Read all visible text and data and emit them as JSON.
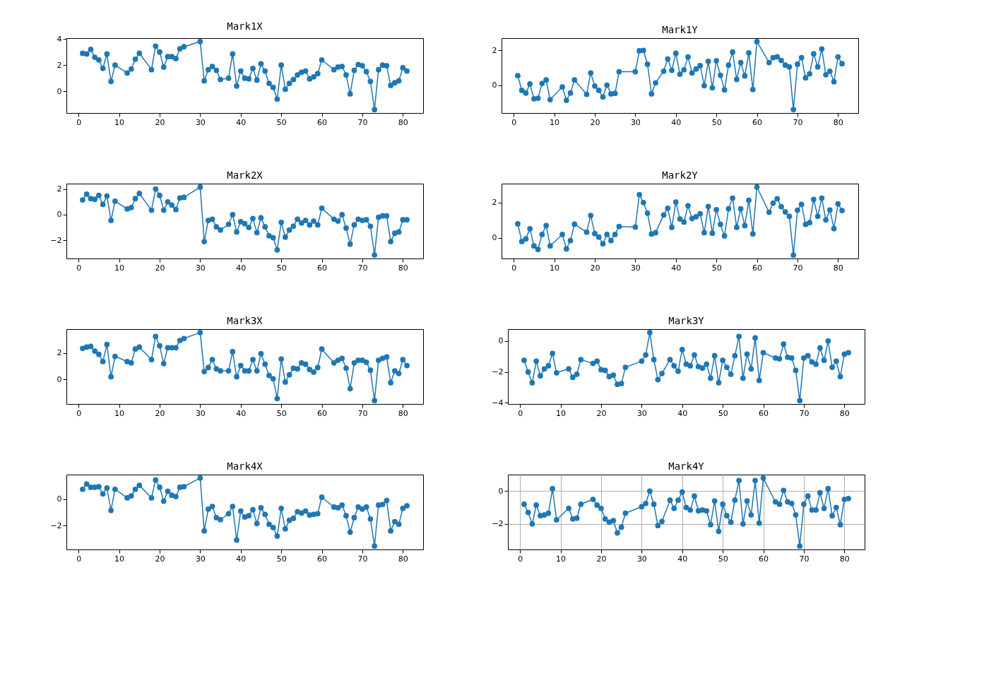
{
  "chart_data": [
    {
      "type": "line",
      "title": "Mark1X",
      "color": "#1f77b4",
      "marker": "circle",
      "line_style": "solid",
      "xlim": [
        -3,
        85
      ],
      "xticks": [
        0,
        10,
        20,
        30,
        40,
        50,
        60,
        70,
        80
      ],
      "ylim": [
        -1.66,
        4.06
      ],
      "yticks": [
        0,
        2,
        4
      ],
      "x": [
        1,
        2,
        3,
        4,
        5,
        6,
        7,
        8,
        9,
        12,
        13,
        14,
        15,
        18,
        19,
        20,
        21,
        22,
        23,
        24,
        25,
        26,
        30,
        31,
        32,
        33,
        34,
        35,
        37,
        38,
        39,
        40,
        41,
        42,
        43,
        44,
        45,
        46,
        47,
        48,
        49,
        50,
        51,
        52,
        53,
        54,
        55,
        56,
        57,
        58,
        59,
        60,
        63,
        64,
        65,
        66,
        67,
        68,
        69,
        70,
        71,
        72,
        73,
        74,
        75,
        76,
        77,
        78,
        79,
        80,
        81
      ],
      "values": [
        2.9,
        2.85,
        3.2,
        2.6,
        2.4,
        1.75,
        2.85,
        0.75,
        2.0,
        1.4,
        1.7,
        2.45,
        2.9,
        1.65,
        3.45,
        3.0,
        1.85,
        2.65,
        2.65,
        2.5,
        3.25,
        3.4,
        3.8,
        0.8,
        1.65,
        1.9,
        1.6,
        0.9,
        1.0,
        2.85,
        0.4,
        1.55,
        1.0,
        0.95,
        1.75,
        0.85,
        2.1,
        1.55,
        0.6,
        0.3,
        -0.6,
        2.0,
        0.15,
        0.6,
        0.9,
        1.25,
        1.45,
        1.55,
        0.95,
        1.1,
        1.35,
        2.4,
        1.65,
        1.85,
        1.9,
        1.25,
        -0.2,
        1.6,
        2.05,
        1.95,
        1.5,
        0.75,
        -1.4,
        1.65,
        2.0,
        1.95,
        0.45,
        0.65,
        0.8,
        1.8,
        1.55
      ]
    },
    {
      "type": "line",
      "title": "Mark1Y",
      "color": "#1f77b4",
      "marker": "circle",
      "line_style": "solid",
      "xlim": [
        -3,
        85
      ],
      "xticks": [
        0,
        10,
        20,
        30,
        40,
        50,
        60,
        70,
        80
      ],
      "ylim": [
        -1.6,
        2.7
      ],
      "yticks": [
        0,
        2
      ],
      "x": [
        1,
        2,
        3,
        4,
        5,
        6,
        7,
        8,
        9,
        12,
        13,
        14,
        15,
        18,
        19,
        20,
        21,
        22,
        23,
        24,
        25,
        26,
        30,
        31,
        32,
        33,
        34,
        35,
        37,
        38,
        39,
        40,
        41,
        42,
        43,
        44,
        45,
        46,
        47,
        48,
        49,
        50,
        51,
        52,
        53,
        54,
        55,
        56,
        57,
        58,
        59,
        60,
        63,
        64,
        65,
        66,
        67,
        68,
        69,
        70,
        71,
        72,
        73,
        74,
        75,
        76,
        77,
        78,
        79,
        80,
        81
      ],
      "values": [
        0.55,
        -0.3,
        -0.45,
        0.07,
        -0.78,
        -0.75,
        0.1,
        0.3,
        -0.83,
        -0.1,
        -0.87,
        -0.45,
        0.3,
        -0.53,
        0.7,
        -0.05,
        -0.3,
        -0.68,
        0.0,
        -0.5,
        -0.47,
        0.77,
        0.77,
        1.97,
        2.0,
        1.2,
        -0.5,
        0.13,
        0.8,
        1.5,
        0.85,
        1.83,
        0.63,
        0.88,
        1.62,
        0.7,
        0.93,
        1.12,
        -0.03,
        1.37,
        -0.15,
        1.4,
        0.57,
        -0.27,
        1.15,
        1.9,
        0.33,
        1.3,
        0.53,
        1.85,
        -0.25,
        2.5,
        1.3,
        1.58,
        1.63,
        1.42,
        1.15,
        1.05,
        -1.4,
        1.2,
        1.58,
        0.42,
        0.65,
        1.8,
        1.05,
        2.08,
        0.6,
        0.8,
        0.2,
        1.62,
        1.23
      ]
    },
    {
      "type": "line",
      "title": "Mark2X",
      "color": "#1f77b4",
      "marker": "circle",
      "line_style": "solid",
      "xlim": [
        -3,
        85
      ],
      "xticks": [
        0,
        10,
        20,
        30,
        40,
        50,
        60,
        70,
        80
      ],
      "ylim": [
        -3.42,
        2.42
      ],
      "yticks": [
        -2,
        0,
        2
      ],
      "x": [
        1,
        2,
        3,
        4,
        5,
        6,
        7,
        8,
        9,
        12,
        13,
        14,
        15,
        18,
        19,
        20,
        21,
        22,
        23,
        24,
        25,
        26,
        30,
        31,
        32,
        33,
        34,
        35,
        37,
        38,
        39,
        40,
        41,
        42,
        43,
        44,
        45,
        46,
        47,
        48,
        49,
        50,
        51,
        52,
        53,
        54,
        55,
        56,
        57,
        58,
        59,
        60,
        63,
        64,
        65,
        66,
        67,
        68,
        69,
        70,
        71,
        72,
        73,
        74,
        75,
        76,
        77,
        78,
        79,
        80,
        81
      ],
      "values": [
        1.15,
        1.6,
        1.25,
        1.2,
        1.5,
        0.8,
        1.45,
        -0.45,
        1.05,
        0.45,
        0.55,
        1.25,
        1.65,
        0.35,
        2.0,
        1.5,
        0.35,
        1.0,
        0.75,
        0.4,
        1.3,
        1.35,
        2.15,
        -2.1,
        -0.45,
        -0.35,
        -0.95,
        -1.2,
        -0.75,
        0.0,
        -1.35,
        -0.55,
        -0.7,
        -1.0,
        -0.3,
        -1.4,
        -0.25,
        -0.95,
        -1.65,
        -1.8,
        -2.75,
        -0.6,
        -1.75,
        -1.2,
        -0.9,
        -0.35,
        -0.65,
        -0.45,
        -0.8,
        -0.5,
        -0.8,
        0.5,
        -0.35,
        -0.5,
        0.0,
        -1.05,
        -2.3,
        -0.8,
        -0.35,
        -0.45,
        -0.4,
        -0.9,
        -3.15,
        -0.2,
        -0.1,
        -0.1,
        -2.1,
        -1.45,
        -1.35,
        -0.4,
        -0.4
      ]
    },
    {
      "type": "line",
      "title": "Mark2Y",
      "color": "#1f77b4",
      "marker": "circle",
      "line_style": "solid",
      "xlim": [
        -3,
        85
      ],
      "xticks": [
        0,
        10,
        20,
        30,
        40,
        50,
        60,
        70,
        80
      ],
      "ylim": [
        -1.16,
        3.07
      ],
      "yticks": [
        0,
        2
      ],
      "x": [
        1,
        2,
        3,
        4,
        5,
        6,
        7,
        8,
        9,
        12,
        13,
        14,
        15,
        18,
        19,
        20,
        21,
        22,
        23,
        24,
        25,
        26,
        30,
        31,
        32,
        33,
        34,
        35,
        37,
        38,
        39,
        40,
        41,
        42,
        43,
        44,
        45,
        46,
        47,
        48,
        49,
        50,
        51,
        52,
        53,
        54,
        55,
        56,
        57,
        58,
        59,
        60,
        63,
        64,
        65,
        66,
        67,
        68,
        69,
        70,
        71,
        72,
        73,
        74,
        75,
        76,
        77,
        78,
        79,
        80,
        81
      ],
      "values": [
        0.8,
        -0.2,
        -0.05,
        0.52,
        -0.45,
        -0.65,
        0.2,
        0.7,
        -0.45,
        0.2,
        -0.62,
        -0.15,
        0.78,
        0.33,
        1.27,
        0.25,
        0.05,
        -0.33,
        0.2,
        -0.15,
        0.2,
        0.65,
        0.62,
        2.45,
        2.0,
        1.4,
        0.22,
        0.3,
        1.3,
        1.68,
        0.6,
        2.03,
        1.07,
        0.9,
        1.82,
        1.1,
        1.2,
        1.37,
        0.3,
        1.78,
        0.27,
        1.6,
        0.77,
        0.12,
        1.65,
        2.25,
        0.6,
        1.65,
        0.7,
        2.13,
        0.23,
        2.88,
        1.45,
        1.97,
        2.22,
        1.77,
        1.47,
        1.22,
        -0.97,
        1.57,
        1.9,
        0.77,
        0.87,
        2.18,
        1.22,
        2.25,
        1.02,
        1.58,
        0.53,
        1.93,
        1.55
      ]
    },
    {
      "type": "line",
      "title": "Mark3X",
      "color": "#1f77b4",
      "marker": "circle",
      "line_style": "solid",
      "xlim": [
        -3,
        85
      ],
      "xticks": [
        0,
        10,
        20,
        30,
        40,
        50,
        60,
        70,
        80
      ],
      "ylim": [
        -1.86,
        3.81
      ],
      "yticks": [
        0,
        2
      ],
      "x": [
        1,
        2,
        3,
        4,
        5,
        6,
        7,
        8,
        9,
        12,
        13,
        14,
        15,
        18,
        19,
        20,
        21,
        22,
        23,
        24,
        25,
        26,
        30,
        31,
        32,
        33,
        34,
        35,
        37,
        38,
        39,
        40,
        41,
        42,
        43,
        44,
        45,
        46,
        47,
        48,
        49,
        50,
        51,
        52,
        53,
        54,
        55,
        56,
        57,
        58,
        59,
        60,
        63,
        64,
        65,
        66,
        67,
        68,
        69,
        70,
        71,
        72,
        73,
        74,
        75,
        76,
        77,
        78,
        79,
        80,
        81
      ],
      "values": [
        2.35,
        2.45,
        2.5,
        2.15,
        1.9,
        1.35,
        2.65,
        0.2,
        1.75,
        1.35,
        1.25,
        2.3,
        2.45,
        1.5,
        3.25,
        2.55,
        1.2,
        2.4,
        2.4,
        2.4,
        2.95,
        3.1,
        3.55,
        0.6,
        0.9,
        1.5,
        0.8,
        0.65,
        0.65,
        2.1,
        0.2,
        1.05,
        0.65,
        0.65,
        1.5,
        0.65,
        1.95,
        1.15,
        0.3,
        0.05,
        -1.45,
        1.55,
        -0.2,
        0.35,
        0.85,
        0.8,
        1.25,
        1.15,
        0.75,
        0.55,
        0.9,
        2.3,
        1.25,
        1.45,
        1.6,
        0.85,
        -0.7,
        1.25,
        1.45,
        1.45,
        1.3,
        0.7,
        -1.6,
        1.45,
        1.6,
        1.7,
        -0.25,
        0.65,
        0.45,
        1.5,
        1.05
      ]
    },
    {
      "type": "line",
      "title": "Mark3Y",
      "color": "#1f77b4",
      "marker": "circle",
      "line_style": "solid",
      "xlim": [
        -3,
        85
      ],
      "xticks": [
        0,
        10,
        20,
        30,
        40,
        50,
        60,
        70,
        80
      ],
      "ylim": [
        -4.07,
        0.77
      ],
      "yticks": [
        -4,
        -2,
        0
      ],
      "x": [
        1,
        2,
        3,
        4,
        5,
        6,
        7,
        8,
        9,
        12,
        13,
        14,
        15,
        18,
        19,
        20,
        21,
        22,
        23,
        24,
        25,
        26,
        30,
        31,
        32,
        33,
        34,
        35,
        37,
        38,
        39,
        40,
        41,
        42,
        43,
        44,
        45,
        46,
        47,
        48,
        49,
        50,
        51,
        52,
        53,
        54,
        55,
        56,
        57,
        58,
        59,
        60,
        63,
        64,
        65,
        66,
        67,
        68,
        69,
        70,
        71,
        72,
        73,
        74,
        75,
        76,
        77,
        78,
        79,
        80,
        81
      ],
      "values": [
        -1.25,
        -2.0,
        -2.7,
        -1.3,
        -2.25,
        -1.8,
        -1.6,
        -0.8,
        -2.05,
        -1.8,
        -2.35,
        -2.15,
        -1.2,
        -1.45,
        -1.3,
        -1.85,
        -1.9,
        -2.3,
        -2.2,
        -2.8,
        -2.75,
        -1.7,
        -1.3,
        -0.9,
        0.55,
        -1.2,
        -2.5,
        -2.1,
        -1.2,
        -1.6,
        -1.95,
        -0.55,
        -1.5,
        -1.6,
        -0.9,
        -1.65,
        -1.75,
        -1.5,
        -2.4,
        -0.95,
        -2.7,
        -1.25,
        -1.7,
        -2.15,
        -0.95,
        0.3,
        -2.4,
        -0.85,
        -1.8,
        0.2,
        -2.55,
        -0.75,
        -1.1,
        -1.15,
        -0.2,
        -1.05,
        -1.1,
        -1.9,
        -3.85,
        -1.1,
        -0.95,
        -1.35,
        -1.5,
        -0.45,
        -1.25,
        0.0,
        -1.7,
        -1.3,
        -2.3,
        -0.85,
        -0.75
      ]
    },
    {
      "type": "line",
      "title": "Mark4X",
      "color": "#1f77b4",
      "marker": "circle",
      "line_style": "solid",
      "xlim": [
        -3,
        85
      ],
      "xticks": [
        0,
        10,
        20,
        30,
        40,
        50,
        60,
        70,
        80
      ],
      "ylim": [
        -3.81,
        1.86
      ],
      "yticks": [
        -2,
        0
      ],
      "x": [
        1,
        2,
        3,
        4,
        5,
        6,
        7,
        8,
        9,
        12,
        13,
        14,
        15,
        18,
        19,
        20,
        21,
        22,
        23,
        24,
        25,
        26,
        30,
        31,
        32,
        33,
        34,
        35,
        37,
        38,
        39,
        40,
        41,
        42,
        43,
        44,
        45,
        46,
        47,
        48,
        49,
        50,
        51,
        52,
        53,
        54,
        55,
        56,
        57,
        58,
        59,
        60,
        63,
        64,
        65,
        66,
        67,
        68,
        69,
        70,
        71,
        72,
        73,
        74,
        75,
        76,
        77,
        78,
        79,
        80,
        81
      ],
      "values": [
        0.75,
        1.15,
        0.9,
        0.9,
        0.95,
        0.4,
        0.85,
        -0.85,
        0.75,
        0.1,
        0.25,
        0.75,
        1.05,
        0.1,
        1.45,
        0.9,
        -0.15,
        0.6,
        0.3,
        0.2,
        0.9,
        0.95,
        1.6,
        -2.4,
        -0.75,
        -0.55,
        -1.4,
        -1.55,
        -1.1,
        -0.55,
        -3.1,
        -0.9,
        -1.35,
        -1.25,
        -0.8,
        -1.85,
        -0.65,
        -1.15,
        -1.9,
        -2.15,
        -2.8,
        -0.7,
        -2.25,
        -1.6,
        -1.45,
        -0.95,
        -1.05,
        -0.9,
        -1.2,
        -1.15,
        -1.1,
        0.15,
        -0.6,
        -0.65,
        -0.45,
        -1.25,
        -2.5,
        -1.4,
        -0.6,
        -0.75,
        -0.6,
        -1.5,
        -3.55,
        -0.45,
        -0.4,
        -0.1,
        -2.4,
        -1.7,
        -1.9,
        -0.7,
        -0.5
      ]
    },
    {
      "type": "line",
      "title": "Mark4Y",
      "color": "#1f77b4",
      "marker": "circle",
      "line_style": "solid",
      "grid": true,
      "xlim": [
        -3,
        85
      ],
      "xticks": [
        0,
        10,
        20,
        30,
        40,
        50,
        60,
        70,
        80
      ],
      "ylim": [
        -3.56,
        1.01
      ],
      "yticks": [
        -2,
        0
      ],
      "x": [
        1,
        2,
        3,
        4,
        5,
        6,
        7,
        8,
        9,
        12,
        13,
        14,
        15,
        18,
        19,
        20,
        21,
        22,
        23,
        24,
        25,
        26,
        30,
        31,
        32,
        33,
        34,
        35,
        37,
        38,
        39,
        40,
        41,
        42,
        43,
        44,
        45,
        46,
        47,
        48,
        49,
        50,
        51,
        52,
        53,
        54,
        55,
        56,
        57,
        58,
        59,
        60,
        63,
        64,
        65,
        66,
        67,
        68,
        69,
        70,
        71,
        72,
        73,
        74,
        75,
        76,
        77,
        78,
        79,
        80,
        81
      ],
      "values": [
        -0.8,
        -1.3,
        -2.0,
        -0.85,
        -1.5,
        -1.45,
        -1.35,
        0.15,
        -1.75,
        -1.05,
        -1.7,
        -1.65,
        -0.8,
        -0.5,
        -0.85,
        -1.05,
        -1.7,
        -1.9,
        -1.8,
        -2.55,
        -2.2,
        -1.35,
        -0.95,
        -0.75,
        0.0,
        -0.8,
        -2.1,
        -1.85,
        -0.55,
        -1.05,
        -0.55,
        -0.05,
        -1.0,
        -1.15,
        -0.3,
        -1.2,
        -1.15,
        -1.2,
        -2.05,
        -0.6,
        -2.45,
        -0.8,
        -1.5,
        -1.9,
        -0.55,
        0.65,
        -2.0,
        -0.6,
        -1.45,
        0.65,
        -1.95,
        0.8,
        -0.65,
        -0.8,
        0.05,
        -0.65,
        -0.75,
        -1.45,
        -3.35,
        -0.8,
        -0.3,
        -1.15,
        -1.15,
        -0.1,
        -1.05,
        0.15,
        -1.5,
        -1.0,
        -2.05,
        -0.5,
        -0.45
      ]
    }
  ]
}
